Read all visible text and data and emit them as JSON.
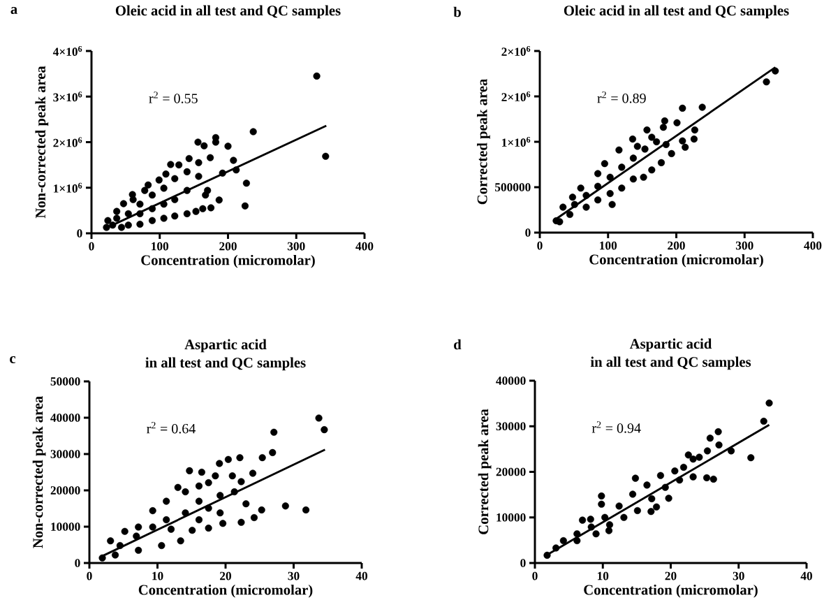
{
  "chart_data": [
    {
      "type": "scatter",
      "title": "Oleic acid in all test and QC samples",
      "xlabel": "Concentration (micromolar)",
      "ylabel": "Non-corrected peak area",
      "annotations": [
        "a",
        "r$^{2}$ = 0.55"
      ],
      "xlim": [
        0,
        400
      ],
      "ylim": [
        0,
        4000000
      ],
      "xticks": [
        0,
        100,
        200,
        300,
        400
      ],
      "yticks": [
        0,
        {
          "value": 1000000,
          "label": "1×10$^{6}$"
        },
        {
          "value": 2000000,
          "label": "2×10$^{6}$"
        },
        {
          "value": 3000000,
          "label": "3×10$^{6}$"
        },
        {
          "value": 4000000,
          "label": "4×10$^{6}$"
        }
      ],
      "series": [
        {
          "type": "scatter",
          "marker": "circle",
          "color": "#000000",
          "x": [
            330,
            343,
            237,
            227,
            225,
            200,
            182,
            182,
            156,
            165,
            208,
            212,
            192,
            187,
            175,
            143,
            116,
            128,
            109,
            99,
            83,
            60,
            47,
            24,
            22,
            37,
            54,
            71,
            89,
            106,
            122,
            140,
            157,
            174,
            54,
            71,
            89,
            106,
            122,
            140,
            153,
            163,
            71,
            89,
            106,
            122,
            140,
            157,
            170,
            167,
            37,
            31,
            44,
            61,
            78
          ],
          "values": [
            3450000,
            1690000,
            2230000,
            1100000,
            600000,
            1910000,
            2100000,
            2000000,
            2000000,
            1920000,
            1600000,
            1390000,
            1320000,
            730000,
            560000,
            1640000,
            1510000,
            1500000,
            1300000,
            1170000,
            1060000,
            850000,
            650000,
            280000,
            130000,
            330000,
            430000,
            640000,
            840000,
            990000,
            1200000,
            1350000,
            1550000,
            1660000,
            180000,
            200000,
            280000,
            330000,
            380000,
            430000,
            480000,
            540000,
            430000,
            540000,
            640000,
            740000,
            940000,
            1250000,
            940000,
            840000,
            480000,
            180000,
            130000,
            740000,
            940000
          ]
        },
        {
          "type": "line",
          "marker": "none",
          "color": "#000000",
          "x": [
            25,
            344
          ],
          "values": [
            140000,
            2360000
          ]
        }
      ]
    },
    {
      "type": "scatter",
      "title": "Oleic acid in all test and QC samples",
      "xlabel": "Concentration (micromolar)",
      "ylabel": "Corrected peak area",
      "annotations": [
        "b",
        "r$^{2}$ = 0.89"
      ],
      "xlim": [
        0,
        400
      ],
      "ylim": [
        0,
        2000000
      ],
      "xticks": [
        0,
        100,
        200,
        300,
        400
      ],
      "yticks": [
        0,
        500000,
        {
          "value": 1000000,
          "label": "1×10$^{6}$"
        },
        {
          "value": 1500000,
          "label": "2×10$^{6}$"
        },
        {
          "value": 2000000,
          "label": "2×10$^{6}$"
        }
      ],
      "series": [
        {
          "type": "scatter",
          "marker": "circle",
          "color": "#000000",
          "x": [
            345,
            332,
            238,
            209,
            183,
            181,
            201,
            227,
            226,
            209,
            213,
            193,
            157,
            136,
            143,
            116,
            106,
            95,
            85,
            60,
            48,
            34,
            24,
            29,
            51,
            68,
            85,
            103,
            120,
            137,
            154,
            171,
            178,
            164,
            152,
            137,
            120,
            103,
            85,
            68,
            44,
            164,
            185
          ],
          "values": [
            1780000,
            1660000,
            1380000,
            1370000,
            1230000,
            1160000,
            1210000,
            1130000,
            1030000,
            1010000,
            940000,
            870000,
            1130000,
            1030000,
            950000,
            910000,
            310000,
            760000,
            650000,
            490000,
            390000,
            280000,
            130000,
            120000,
            310000,
            410000,
            510000,
            610000,
            720000,
            820000,
            920000,
            1000000,
            770000,
            690000,
            610000,
            590000,
            490000,
            430000,
            360000,
            280000,
            200000,
            1050000,
            970000
          ]
        },
        {
          "type": "line",
          "marker": "none",
          "color": "#000000",
          "x": [
            22,
            345
          ],
          "values": [
            140000,
            1820000
          ]
        }
      ]
    },
    {
      "type": "scatter",
      "title": "Aspartic acid",
      "subtitle": "in all test and QC samples",
      "xlabel": "Concentration (micromolar)",
      "ylabel": "Non-corrected peak area",
      "annotations": [
        "c",
        "r$^{2}$ = 0.64"
      ],
      "xlim": [
        0,
        40
      ],
      "ylim": [
        0,
        50000
      ],
      "xticks": [
        0,
        10,
        20,
        30,
        40
      ],
      "yticks": [
        0,
        10000,
        20000,
        30000,
        40000,
        50000
      ],
      "series": [
        {
          "type": "scatter",
          "marker": "circle",
          "color": "#000000",
          "x": [
            33.7,
            34.5,
            27.1,
            26.9,
            28.8,
            31.8,
            25.3,
            20.4,
            22.1,
            25.4,
            14.7,
            16.5,
            13.0,
            19.1,
            21.0,
            24.0,
            22.3,
            21.3,
            23.0,
            24.2,
            22.3,
            19.6,
            17.5,
            15.1,
            13.4,
            10.6,
            7.2,
            3.8,
            1.9,
            5.2,
            7.2,
            9.3,
            11.3,
            14.1,
            16.1,
            17.5,
            18.5,
            19.2,
            16.1,
            14.1,
            11.3,
            9.3,
            6.9,
            4.5,
            3.1,
            12.0,
            16.1,
            19.2,
            17.5
          ],
          "values": [
            39900,
            36700,
            36000,
            30400,
            15700,
            14600,
            14600,
            28500,
            29000,
            29000,
            25400,
            25000,
            20800,
            27400,
            24000,
            24700,
            22400,
            19600,
            16300,
            12500,
            11200,
            10900,
            9600,
            9000,
            6100,
            4800,
            3500,
            2200,
            1400,
            8700,
            9900,
            14400,
            17000,
            19600,
            21200,
            22100,
            24000,
            18600,
            17000,
            13800,
            11900,
            9900,
            7400,
            4800,
            6100,
            9300,
            11900,
            13800,
            15100
          ]
        },
        {
          "type": "line",
          "marker": "none",
          "color": "#000000",
          "x": [
            2,
            34.6
          ],
          "values": [
            2000,
            31200
          ]
        }
      ]
    },
    {
      "type": "scatter",
      "title": "Aspartic acid",
      "subtitle": "in all test and QC samples",
      "xlabel": "Concentration (micromolar)",
      "ylabel": "Corrected peak area",
      "annotations": [
        "d",
        "r$^{2}$ = 0.94"
      ],
      "xlim": [
        0,
        40
      ],
      "ylim": [
        0,
        40000
      ],
      "xticks": [
        0,
        10,
        20,
        30,
        40
      ],
      "yticks": [
        0,
        10000,
        20000,
        30000,
        40000
      ],
      "series": [
        {
          "type": "scatter",
          "marker": "circle",
          "color": "#000000",
          "x": [
            34.5,
            33.7,
            31.8,
            28.9,
            27.0,
            25.8,
            27.1,
            25.4,
            24.2,
            22.6,
            23.3,
            26.3,
            25.3,
            14.8,
            9.8,
            9.8,
            17.1,
            17.9,
            19.7,
            7.0,
            8.2,
            10.9,
            1.8,
            4.2,
            6.2,
            8.3,
            10.3,
            12.4,
            14.4,
            16.5,
            18.5,
            20.6,
            21.9,
            21.3,
            23.3,
            19.2,
            17.2,
            15.1,
            13.1,
            11.0,
            9.0,
            6.2,
            3.1
          ],
          "values": [
            35100,
            31100,
            23100,
            24600,
            28800,
            27400,
            25900,
            24600,
            23200,
            23700,
            22800,
            18400,
            18700,
            18600,
            14700,
            12900,
            11300,
            12300,
            14200,
            9400,
            9600,
            7100,
            1700,
            4900,
            6400,
            7900,
            10000,
            12500,
            15100,
            17100,
            19200,
            20200,
            21000,
            18200,
            18900,
            16600,
            14100,
            11500,
            10000,
            8400,
            6400,
            4900,
            3300
          ]
        },
        {
          "type": "line",
          "marker": "none",
          "color": "#000000",
          "x": [
            1.8,
            34.5
          ],
          "values": [
            1800,
            30300
          ]
        }
      ]
    }
  ]
}
